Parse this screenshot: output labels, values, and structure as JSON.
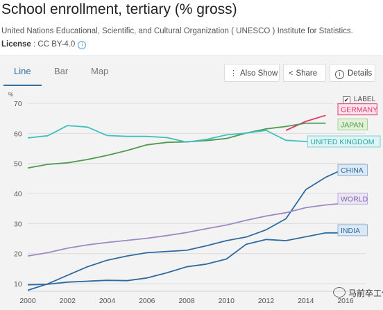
{
  "header": {
    "title": "School enrollment, tertiary (% gross)",
    "source": "United Nations Educational, Scientific, and Cultural Organization ( UNESCO ) Institute for Statistics.",
    "license_label": "License",
    "license_value": " : CC BY-4.0",
    "info_icon": "i"
  },
  "tabs": [
    {
      "label": "Line",
      "active": true
    },
    {
      "label": "Bar",
      "active": false
    },
    {
      "label": "Map",
      "active": false
    }
  ],
  "actions": {
    "also_show": "Also Show",
    "share": "Share",
    "details": "Details",
    "icons": {
      "also_show": "dots-vertical-icon",
      "share": "share-icon",
      "details": "info-icon"
    }
  },
  "label_toggle": {
    "label": "LABEL",
    "checked": true,
    "check_glyph": "✔"
  },
  "watermark": {
    "text": "马前卒工作室",
    "icon": "wechat-icon"
  },
  "chart_data": {
    "type": "line",
    "unit": "%",
    "title": "",
    "xlabel": "",
    "ylabel": "%",
    "xlim": [
      2000,
      2017
    ],
    "ylim": [
      8,
      73
    ],
    "x_ticks": [
      2000,
      2002,
      2004,
      2006,
      2008,
      2010,
      2012,
      2014,
      2016
    ],
    "y_ticks": [
      10,
      20,
      30,
      40,
      50,
      60,
      70
    ],
    "grid": true,
    "series": [
      {
        "name": "GERMANY",
        "color": "#e0356f",
        "x": [
          2013,
          2014,
          2015
        ],
        "y": [
          61,
          64,
          66
        ]
      },
      {
        "name": "JAPAN",
        "color": "#4e9a4e",
        "x": [
          2000,
          2001,
          2002,
          2003,
          2004,
          2005,
          2006,
          2007,
          2008,
          2009,
          2010,
          2011,
          2012,
          2013,
          2014,
          2015
        ],
        "y": [
          48.5,
          49.7,
          50.2,
          51.3,
          52.7,
          54.3,
          56.2,
          57,
          57.2,
          57.6,
          58.3,
          60.1,
          61.5,
          62.3,
          63.4,
          63.4
        ]
      },
      {
        "name": "UNITED KINGDOM",
        "color": "#3fbfbf",
        "x": [
          2000,
          2001,
          2002,
          2003,
          2004,
          2005,
          2006,
          2007,
          2008,
          2009,
          2010,
          2011,
          2012,
          2013,
          2014,
          2015
        ],
        "y": [
          58.5,
          59.2,
          62.6,
          62.1,
          59.3,
          59,
          59,
          58.6,
          57.1,
          58,
          59.5,
          60.1,
          61,
          57.7,
          57.3,
          57.3
        ]
      },
      {
        "name": "CHINA",
        "color": "#2d6a9f",
        "x": [
          2000,
          2001,
          2002,
          2003,
          2004,
          2005,
          2006,
          2007,
          2008,
          2009,
          2010,
          2011,
          2012,
          2013,
          2014,
          2015,
          2016
        ],
        "y": [
          7.8,
          9.9,
          12.8,
          15.6,
          17.8,
          19.2,
          20.3,
          20.7,
          21.1,
          22.6,
          24.3,
          25.5,
          27.9,
          31.6,
          41.3,
          45.4,
          48.4
        ]
      },
      {
        "name": "WORLD",
        "color": "#9d88c4",
        "x": [
          2000,
          2001,
          2002,
          2003,
          2004,
          2005,
          2006,
          2007,
          2008,
          2009,
          2010,
          2011,
          2012,
          2013,
          2014,
          2015,
          2016
        ],
        "y": [
          19.2,
          20.3,
          21.8,
          22.9,
          23.7,
          24.4,
          25.1,
          26,
          27,
          28.3,
          29.5,
          31.1,
          32.5,
          33.6,
          35.3,
          36.2,
          36.8
        ]
      },
      {
        "name": "INDIA",
        "color": "#2d6a9f",
        "x": [
          2000,
          2001,
          2002,
          2003,
          2004,
          2005,
          2006,
          2007,
          2008,
          2009,
          2010,
          2011,
          2012,
          2013,
          2014,
          2015,
          2016
        ],
        "y": [
          9.6,
          9.8,
          10.5,
          10.8,
          11.1,
          11,
          11.9,
          13.6,
          15.6,
          16.5,
          18.2,
          23.1,
          24.7,
          24.3,
          25.6,
          26.9,
          26.9
        ]
      }
    ],
    "labels": [
      {
        "series": "GERMANY",
        "text": "GERMANY",
        "y": 68,
        "color": "#e0356f",
        "bg": "#fbe4ec",
        "border": "#e0356f"
      },
      {
        "series": "JAPAN",
        "text": "JAPAN",
        "y": 63,
        "color": "#4e9a4e",
        "bg": "#e3f0d8",
        "border": "#a9cf8e"
      },
      {
        "series": "UNITED KINGDOM",
        "text": "UNITED KINGDOM",
        "y": 57.3,
        "color": "#2aa6a6",
        "bg": "#dff4f4",
        "border": "#7fd2d2"
      },
      {
        "series": "CHINA",
        "text": "CHINA",
        "y": 47.8,
        "color": "#2d6a9f",
        "bg": "#dce8f3",
        "border": "#8fb3d4"
      },
      {
        "series": "WORLD",
        "text": "WORLD",
        "y": 38.3,
        "color": "#7e6aab",
        "bg": "#ebe5f4",
        "border": "#bcaedb"
      },
      {
        "series": "INDIA",
        "text": "INDIA",
        "y": 27.8,
        "color": "#2d6a9f",
        "bg": "#dce8f3",
        "border": "#8fb3d4"
      }
    ]
  }
}
